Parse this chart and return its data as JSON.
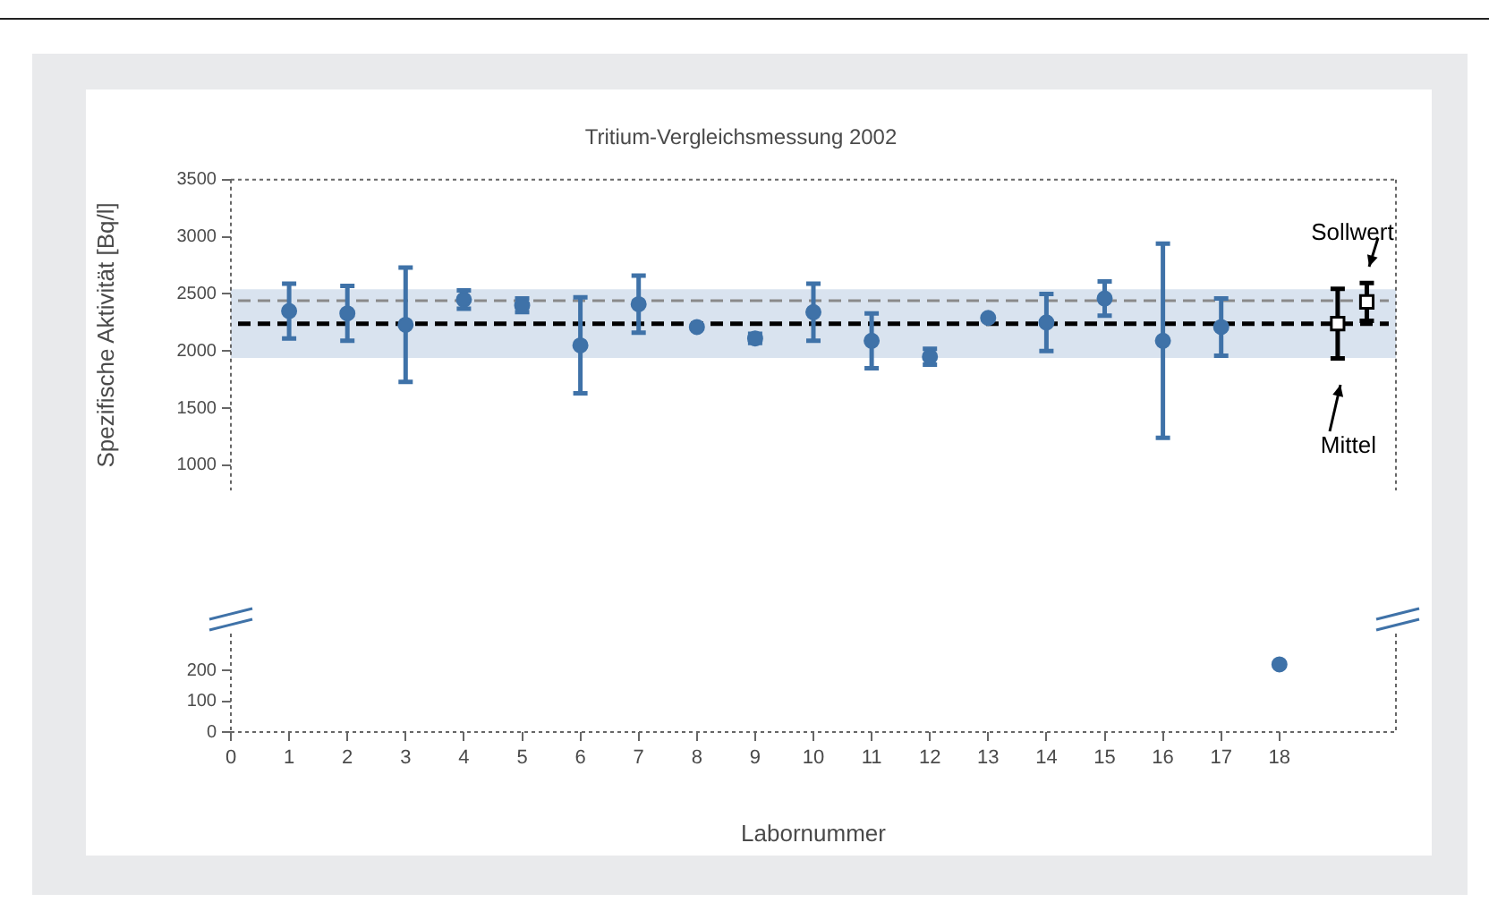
{
  "chart_data": [
    {
      "type": "scatter",
      "title": "Tritium-Vergleichsmessung 2002",
      "ylabel": "Spezifische Aktivität [Bq/l]",
      "xlim": [
        0,
        20
      ],
      "ylim": [
        780,
        3500
      ],
      "yticks": [
        1000,
        1500,
        2000,
        2500,
        3000,
        3500
      ],
      "tick_labels": "y",
      "marker": "circle",
      "bands": [
        {
          "axis": "y",
          "from": 1940,
          "to": 2540,
          "color": "#d9e3ef"
        }
      ],
      "ref_lines": [
        {
          "axis": "y",
          "value": 2440,
          "color": "#8a8a8a",
          "line_style": "dashed"
        },
        {
          "axis": "y",
          "value": 2240,
          "color": "#000000",
          "line_style": "dashed"
        }
      ],
      "series": [
        {
          "color": "#3f72a8",
          "x": [
            1,
            2,
            3,
            4,
            5,
            6,
            7,
            8,
            9,
            10,
            11,
            12,
            13,
            14,
            15,
            16,
            17
          ],
          "values": [
            2350,
            2330,
            2230,
            2450,
            2400,
            2050,
            2410,
            2210,
            2110,
            2340,
            2090,
            1950,
            2290,
            2250,
            2460,
            2090,
            2210
          ],
          "errors": [
            240,
            240,
            500,
            80,
            60,
            420,
            250,
            null,
            40,
            250,
            240,
            70,
            null,
            250,
            150,
            850,
            250
          ]
        },
        {
          "name": "Mittel",
          "color": "#000000",
          "marker": "square",
          "x": [
            19
          ],
          "values": [
            2240
          ],
          "errors": [
            305
          ]
        },
        {
          "name": "Sollwert",
          "color": "#000000",
          "marker": "square",
          "x": [
            19.5
          ],
          "values": [
            2430
          ],
          "errors": [
            165
          ]
        }
      ]
    },
    {
      "type": "scatter",
      "xlabel": "Labornummer",
      "xlim": [
        0,
        20
      ],
      "xticks": [
        0,
        1,
        2,
        3,
        4,
        5,
        6,
        7,
        8,
        9,
        10,
        11,
        12,
        13,
        14,
        15,
        16,
        17,
        18
      ],
      "ylim": [
        0,
        320
      ],
      "yticks": [
        0,
        100,
        200
      ],
      "marker": "circle",
      "series": [
        {
          "color": "#3f72a8",
          "x": [
            18
          ],
          "values": [
            220
          ]
        }
      ]
    }
  ]
}
